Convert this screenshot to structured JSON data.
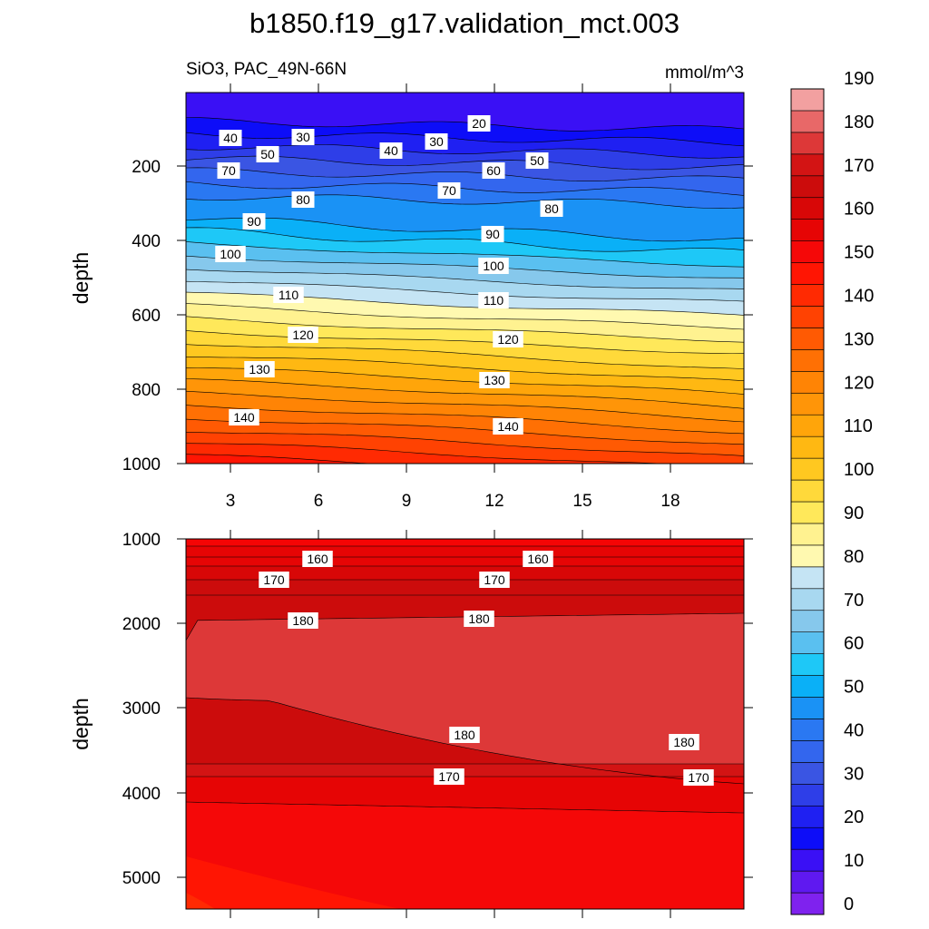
{
  "chart_data": {
    "title": "b1850.f19_g17.validation_mct.003",
    "colorbar": {
      "levels": [
        0,
        5,
        10,
        15,
        20,
        25,
        30,
        35,
        40,
        45,
        50,
        55,
        60,
        65,
        70,
        75,
        80,
        85,
        90,
        95,
        100,
        105,
        110,
        115,
        120,
        125,
        130,
        135,
        140,
        145,
        150,
        155,
        160,
        165,
        170,
        175,
        180,
        185,
        190,
        195
      ],
      "tick_labels": [
        "0",
        "10",
        "20",
        "30",
        "40",
        "50",
        "60",
        "70",
        "80",
        "90",
        "100",
        "110",
        "120",
        "130",
        "140",
        "150",
        "160",
        "170",
        "180",
        "190"
      ],
      "colors": [
        "#7f22ee",
        "#5f19f0",
        "#3a10f5",
        "#0d0df8",
        "#1f20f2",
        "#2e3ee8",
        "#3a55e3",
        "#3366ee",
        "#2a78f2",
        "#1a92f5",
        "#0ab0f7",
        "#1ec8f7",
        "#5ac0f0",
        "#86c8ec",
        "#a8d8f0",
        "#c5e4f4",
        "#fff9b0",
        "#fff290",
        "#ffe85a",
        "#ffd93a",
        "#ffc820",
        "#ffb812",
        "#ffa50a",
        "#ff9508",
        "#ff8405",
        "#ff7004",
        "#ff5a03",
        "#ff4202",
        "#ff2a02",
        "#ff1503",
        "#f50808",
        "#e60505",
        "#d80707",
        "#cc0c0c",
        "#d31414",
        "#dd3838",
        "#e86868",
        "#f2a0a0"
      ]
    },
    "panels": [
      {
        "type": "contour",
        "subtitle_left": "SiO3, PAC_49N-66N",
        "subtitle_right": "mmol/m^3",
        "ylabel": "depth",
        "ylim": [
          1000,
          0
        ],
        "yticks": [
          "200",
          "400",
          "600",
          "800",
          "1000"
        ],
        "xticks": [
          "3",
          "6",
          "9",
          "12",
          "15",
          "18"
        ],
        "contour_labels": [
          {
            "text": "20"
          },
          {
            "text": "30"
          },
          {
            "text": "30"
          },
          {
            "text": "40"
          },
          {
            "text": "40"
          },
          {
            "text": "50"
          },
          {
            "text": "50"
          },
          {
            "text": "60"
          },
          {
            "text": "70"
          },
          {
            "text": "70"
          },
          {
            "text": "80"
          },
          {
            "text": "80"
          },
          {
            "text": "90"
          },
          {
            "text": "90"
          },
          {
            "text": "100"
          },
          {
            "text": "100"
          },
          {
            "text": "110"
          },
          {
            "text": "110"
          },
          {
            "text": "120"
          },
          {
            "text": "120"
          },
          {
            "text": "130"
          },
          {
            "text": "130"
          },
          {
            "text": "140"
          },
          {
            "text": "140"
          }
        ]
      },
      {
        "type": "contour",
        "ylabel": "depth",
        "ylim": [
          5400,
          1000
        ],
        "yticks": [
          "1000",
          "2000",
          "3000",
          "4000",
          "5000"
        ],
        "contour_labels": [
          {
            "text": "160"
          },
          {
            "text": "160"
          },
          {
            "text": "170"
          },
          {
            "text": "170"
          },
          {
            "text": "180"
          },
          {
            "text": "180"
          },
          {
            "text": "180"
          },
          {
            "text": "180"
          },
          {
            "text": "170"
          },
          {
            "text": "170"
          }
        ]
      }
    ]
  }
}
